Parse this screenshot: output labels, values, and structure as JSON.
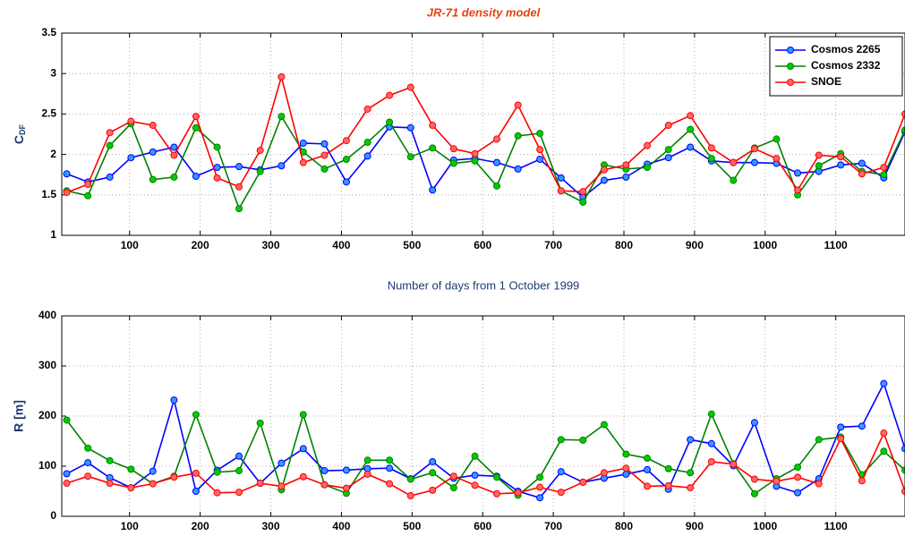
{
  "chart_data": [
    {
      "type": "line",
      "title": "JR-71 density model",
      "xlabel": "Number of days from 1 October 1999",
      "ylabel": "C",
      "ylabel_subscript": "DF",
      "x": [
        11,
        41,
        72,
        102,
        133,
        163,
        194,
        224,
        255,
        285,
        315,
        346,
        376,
        407,
        437,
        468,
        498,
        529,
        559,
        589,
        620,
        650,
        681,
        711,
        742,
        772,
        803,
        833,
        863,
        894,
        924,
        955,
        985,
        1016,
        1046,
        1076,
        1107,
        1137,
        1168,
        1198
      ],
      "series": [
        {
          "name": "Cosmos 2265",
          "color": "#0000ff",
          "values": [
            1.76,
            1.66,
            1.72,
            1.96,
            2.03,
            2.09,
            1.73,
            1.84,
            1.85,
            1.81,
            1.86,
            2.14,
            2.13,
            1.66,
            1.98,
            2.34,
            2.33,
            1.56,
            1.93,
            1.95,
            1.9,
            1.82,
            1.94,
            1.71,
            1.47,
            1.68,
            1.72,
            1.88,
            1.96,
            2.09,
            1.92,
            1.9,
            1.9,
            1.89,
            1.77,
            1.79,
            1.87,
            1.89,
            1.71,
            2.28
          ]
        },
        {
          "name": "Cosmos 2332",
          "color": "#008000",
          "values": [
            1.55,
            1.49,
            2.11,
            2.38,
            1.69,
            1.72,
            2.33,
            2.09,
            1.33,
            1.79,
            2.47,
            2.03,
            1.82,
            1.94,
            2.15,
            2.4,
            1.97,
            2.08,
            1.89,
            1.92,
            1.61,
            2.23,
            2.26,
            1.55,
            1.41,
            1.87,
            1.82,
            1.84,
            2.06,
            2.31,
            1.95,
            1.68,
            2.08,
            2.19,
            1.5,
            1.86,
            2.01,
            1.79,
            1.75,
            2.3
          ]
        },
        {
          "name": "SNOE",
          "color": "#ff0000",
          "values": [
            1.53,
            1.63,
            2.27,
            2.41,
            2.36,
            1.99,
            2.47,
            1.71,
            1.6,
            2.05,
            2.96,
            1.9,
            1.99,
            2.17,
            2.56,
            2.73,
            2.83,
            2.36,
            2.07,
            2.01,
            2.19,
            2.61,
            2.06,
            1.55,
            1.54,
            1.81,
            1.87,
            2.11,
            2.36,
            2.48,
            2.08,
            1.9,
            2.07,
            1.95,
            1.56,
            1.99,
            1.97,
            1.76,
            1.84,
            2.5
          ]
        }
      ],
      "xlim": [
        4,
        1198
      ],
      "xticks": [
        100,
        200,
        300,
        400,
        500,
        600,
        700,
        800,
        900,
        1000,
        1100
      ],
      "ylim": [
        1,
        3.5
      ],
      "yticks": [
        1,
        1.5,
        2,
        2.5,
        3,
        3.5
      ],
      "grid": true,
      "legend": "upper right"
    },
    {
      "type": "line",
      "ylabel": "R [m]",
      "x": [
        11,
        41,
        72,
        102,
        133,
        163,
        194,
        224,
        255,
        285,
        315,
        346,
        376,
        407,
        437,
        468,
        498,
        529,
        559,
        589,
        620,
        650,
        681,
        711,
        742,
        772,
        803,
        833,
        863,
        894,
        924,
        955,
        985,
        1016,
        1046,
        1076,
        1107,
        1137,
        1168,
        1198
      ],
      "series": [
        {
          "color": "#0000ff",
          "values": [
            85,
            107,
            77,
            57,
            90,
            232,
            50,
            92,
            120,
            66,
            106,
            135,
            91,
            92,
            95,
            96,
            75,
            109,
            76,
            82,
            80,
            50,
            37,
            89,
            68,
            76,
            84,
            93,
            54,
            153,
            145,
            101,
            187,
            60,
            47,
            75,
            178,
            180,
            265,
            135
          ]
        },
        {
          "color": "#008000",
          "values": [
            192,
            136,
            111,
            94,
            65,
            80,
            203,
            88,
            91,
            186,
            53,
            203,
            63,
            46,
            112,
            112,
            74,
            87,
            57,
            120,
            78,
            42,
            78,
            153,
            152,
            183,
            124,
            116,
            95,
            87,
            204,
            105,
            45,
            75,
            98,
            153,
            158,
            83,
            130,
            92
          ]
        },
        {
          "color": "#ff0000",
          "values": [
            66,
            80,
            66,
            57,
            65,
            78,
            86,
            47,
            48,
            66,
            60,
            79,
            63,
            56,
            84,
            65,
            41,
            52,
            80,
            62,
            45,
            47,
            58,
            48,
            68,
            87,
            96,
            60,
            61,
            57,
            109,
            104,
            74,
            70,
            78,
            65,
            155,
            71,
            166,
            50
          ]
        }
      ],
      "xlim": [
        4,
        1198
      ],
      "xticks": [
        100,
        200,
        300,
        400,
        500,
        600,
        700,
        800,
        900,
        1000,
        1100
      ],
      "ylim": [
        0,
        400
      ],
      "yticks": [
        0,
        100,
        200,
        300,
        400
      ],
      "grid": true
    }
  ]
}
